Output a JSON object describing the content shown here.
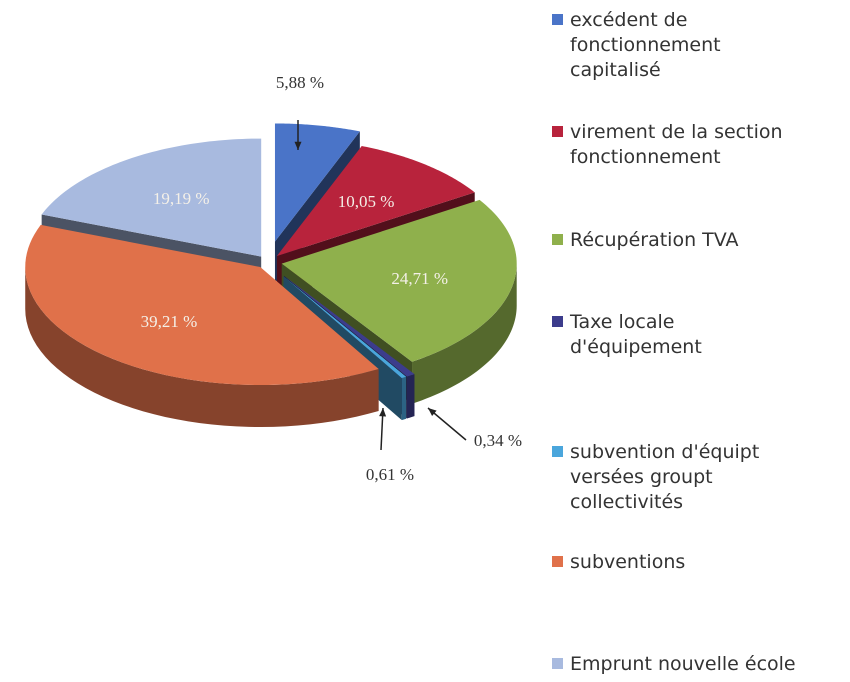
{
  "chart_data": {
    "type": "pie",
    "categories": [
      "excédent de fonctionnement capitalisé",
      "virement de la section fonctionnement",
      "Récupération TVA",
      "Taxe locale d'équipement",
      "subvention d'équipt versées groupt collectivités",
      "subventions",
      "Emprunt nouvelle école"
    ],
    "values": [
      5.88,
      10.05,
      24.71,
      0.61,
      0.34,
      39.21,
      19.19
    ],
    "value_labels": [
      "5,88 %",
      "10,05 %",
      "24,71 %",
      "0,61 %",
      "0,34 %",
      "39,21 %",
      "19,19 %"
    ],
    "colors": [
      "#4a74c8",
      "#b8233c",
      "#8fb04c",
      "#3c3c8c",
      "#4aa6dc",
      "#e0714a",
      "#a8badf"
    ],
    "legend": "right"
  }
}
